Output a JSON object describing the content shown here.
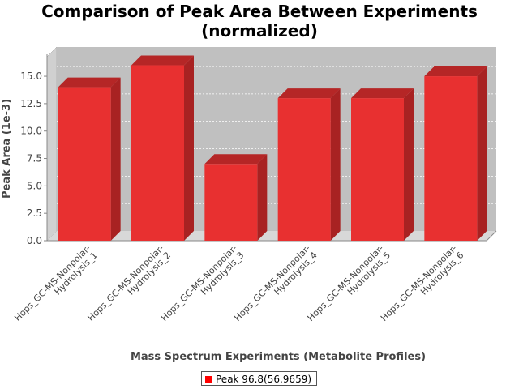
{
  "chart_data": {
    "type": "bar",
    "title_line1": "Comparison of Peak Area Between Experiments",
    "title_line2": "(normalized)",
    "xlabel": "Mass Spectrum Experiments (Metabolite Profiles)",
    "ylabel": "Peak Area (1e-3)",
    "ylim": [
      0,
      17
    ],
    "yticks": [
      "0.0",
      "2.5",
      "5.0",
      "7.5",
      "10.0",
      "12.5",
      "15.0"
    ],
    "categories": [
      [
        "Hops_GC-MS-Nonpolar-",
        "Hydrolysis_1"
      ],
      [
        "Hops_GC-MS-Nonpolar-",
        "Hydrolysis_2"
      ],
      [
        "Hops_GC-MS-Nonpolar-",
        "Hydrolysis_3"
      ],
      [
        "Hops_GC-MS-Nonpolar-",
        "Hydrolysis_4"
      ],
      [
        "Hops_GC-MS-Nonpolar-",
        "Hydrolysis_5"
      ],
      [
        "Hops_GC-MS-Nonpolar-",
        "Hydrolysis_6"
      ]
    ],
    "series": [
      {
        "name": "Peak 96.8(56.9659)",
        "values": [
          14.0,
          16.0,
          7.0,
          13.0,
          13.0,
          15.0
        ]
      }
    ],
    "bar_color": "#e83030",
    "grid": true,
    "legend_position": "bottom"
  }
}
